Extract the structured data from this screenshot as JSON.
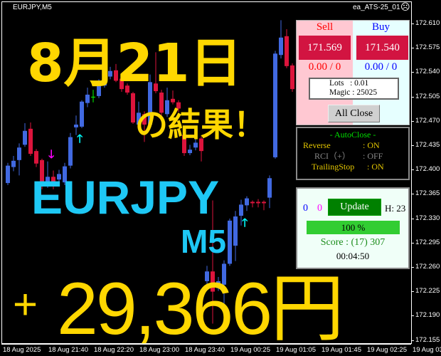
{
  "header": {
    "symbol": "EURJPY,M5",
    "ea_name": "ea_ATS-25_01",
    "ea_status_icon": "frown-face-icon"
  },
  "price_axis": [
    "172.610",
    "172.575",
    "172.540",
    "172.505",
    "172.470",
    "172.435",
    "172.400",
    "172.365",
    "172.330",
    "172.295",
    "172.260",
    "172.225",
    "172.190",
    "172.155"
  ],
  "time_axis": [
    "18 Aug 2025",
    "18 Aug 21:40",
    "18 Aug 22:20",
    "18 Aug 23:00",
    "18 Aug 23:40",
    "19 Aug 00:25",
    "19 Aug 01:05",
    "19 Aug 01:45",
    "19 Aug 02:25",
    "19 Aug 03"
  ],
  "overlay": {
    "date": "8月21日",
    "subtitle": "の結果！",
    "pair": "EURJPY",
    "timeframe": "M5",
    "profit_sign": "+",
    "profit": "29,366円"
  },
  "colors": {
    "bull": "#4169e1",
    "bear": "#dc143c",
    "overlay_yellow": "#ffd700",
    "overlay_cyan": "#1ec8f5",
    "buy_arrow": "#00ffff",
    "sell_arrow": "#ff00ff"
  },
  "candles": [
    [
      0.381,
      0.406,
      0.41,
      0.378
    ],
    [
      0.404,
      0.413,
      0.42,
      0.398
    ],
    [
      0.414,
      0.432,
      0.438,
      0.392
    ],
    [
      0.436,
      0.456,
      0.467,
      0.433
    ],
    [
      0.459,
      0.423,
      0.468,
      0.42
    ],
    [
      0.427,
      0.409,
      0.43,
      0.404
    ],
    [
      0.414,
      0.378,
      0.416,
      0.372
    ],
    [
      0.378,
      0.39,
      0.412,
      0.374
    ],
    [
      0.39,
      0.378,
      0.399,
      0.372
    ],
    [
      0.386,
      0.394,
      0.4,
      0.38
    ],
    [
      0.382,
      0.405,
      0.41,
      0.378
    ],
    [
      0.406,
      0.447,
      0.453,
      0.402
    ],
    [
      0.461,
      0.465,
      0.478,
      0.45
    ],
    [
      0.462,
      0.498,
      0.5,
      0.46
    ],
    [
      0.496,
      0.508,
      0.518,
      0.49
    ],
    [
      0.505,
      0.505,
      0.515,
      0.497
    ],
    [
      0.506,
      0.524,
      0.53,
      0.503
    ],
    [
      0.521,
      0.537,
      0.54,
      0.518
    ],
    [
      0.534,
      0.542,
      0.548,
      0.53
    ],
    [
      0.543,
      0.528,
      0.552,
      0.526
    ],
    [
      0.531,
      0.516,
      0.535,
      0.512
    ],
    [
      0.521,
      0.511,
      0.524,
      0.508
    ],
    [
      0.51,
      0.468,
      0.512,
      0.466
    ],
    [
      0.465,
      0.482,
      0.498,
      0.462
    ],
    [
      0.48,
      0.465,
      0.484,
      0.44
    ],
    [
      0.465,
      0.526,
      0.537,
      0.463
    ],
    [
      0.524,
      0.513,
      0.569,
      0.51
    ],
    [
      0.511,
      0.482,
      0.515,
      0.478
    ],
    [
      0.48,
      0.5,
      0.518,
      0.476
    ],
    [
      0.502,
      0.497,
      0.514,
      0.494
    ],
    [
      0.497,
      0.488,
      0.5,
      0.483
    ],
    [
      0.45,
      0.424,
      0.453,
      0.42
    ],
    [
      0.424,
      0.429,
      0.436,
      0.421
    ],
    [
      0.432,
      0.439,
      0.447,
      0.428
    ],
    [
      0.445,
      0.427,
      0.448,
      0.412
    ],
    [
      0.24,
      0.254,
      0.262,
      0.236
    ],
    [
      0.254,
      0.225,
      0.356,
      0.179
    ],
    [
      0.23,
      0.24,
      0.246,
      0.226
    ],
    [
      0.235,
      0.265,
      0.27,
      0.19
    ],
    [
      0.265,
      0.327,
      0.33,
      0.262
    ],
    [
      0.291,
      0.333,
      0.341,
      0.269
    ],
    [
      0.334,
      0.35,
      0.357,
      0.32
    ],
    [
      0.349,
      0.359,
      0.362,
      0.341
    ],
    [
      0.354,
      0.352,
      0.356,
      0.346
    ],
    [
      0.354,
      0.352,
      0.358,
      0.346
    ],
    [
      0.354,
      0.352,
      0.356,
      0.342
    ],
    [
      0.36,
      0.388,
      0.392,
      0.345
    ],
    [
      0.418,
      0.567,
      0.571,
      0.416
    ],
    [
      0.565,
      0.59,
      0.615,
      0.56
    ],
    [
      0.592,
      0.549,
      0.602,
      0.546
    ],
    [
      0.55,
      0.516,
      0.553,
      0.512
    ]
  ],
  "sell_panel": {
    "label": "Sell",
    "price": "171.569",
    "position": "0.00 / 0"
  },
  "buy_panel": {
    "label": "Buy",
    "price": "171.540",
    "position": "0.00 / 0"
  },
  "info": {
    "lots": "Lots   : 0.01",
    "magic": "Magic : 25025"
  },
  "all_close": "All Close",
  "autoclose": {
    "title": "- AutoClose -",
    "rows": [
      {
        "label": "Reverse",
        "value": ": ON"
      },
      {
        "label": "RCI（+）",
        "value": ": OFF"
      },
      {
        "label": "TrailingStop",
        "value": ": ON"
      }
    ]
  },
  "status": {
    "count_buy": "0",
    "count_sell": "0",
    "update": "Update",
    "hour": "H: 23",
    "progress_text": "100 %",
    "progress": 100,
    "score": "Score : (17) 307",
    "timer": "00:04:50"
  }
}
